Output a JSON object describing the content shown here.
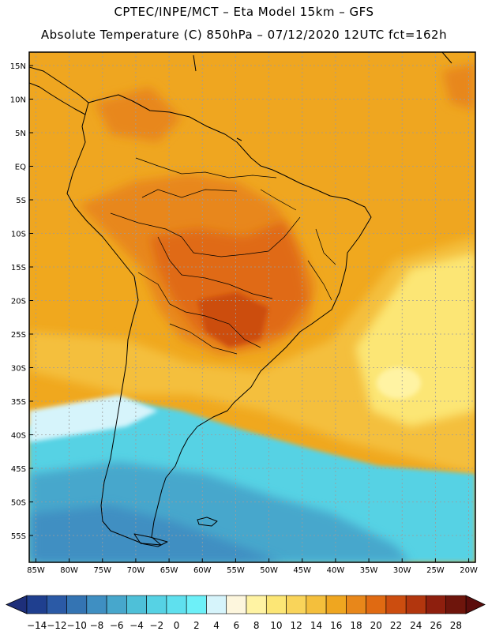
{
  "header": {
    "line1": "CPTEC/INPE/MCT –  Eta Model 15km – GFS",
    "line2": "Absolute Temperature (C) 850hPa – 07/12/2020 12UTC fct=162h"
  },
  "map": {
    "lat_labels": [
      "15N",
      "10N",
      "5N",
      "EQ",
      "5S",
      "10S",
      "15S",
      "20S",
      "25S",
      "30S",
      "35S",
      "40S",
      "45S",
      "50S",
      "55S"
    ],
    "lon_labels": [
      "85W",
      "80W",
      "75W",
      "70W",
      "65W",
      "60W",
      "55W",
      "50W",
      "45W",
      "40W",
      "35W",
      "30W",
      "25W",
      "20W"
    ]
  },
  "colorbar": {
    "labels": [
      "-14",
      "-12",
      "-10",
      "-8",
      "-6",
      "-4",
      "-2",
      "0",
      "2",
      "4",
      "6",
      "8",
      "10",
      "12",
      "14",
      "16",
      "18",
      "20",
      "22",
      "24",
      "26",
      "28"
    ],
    "colors": [
      "#1f3f8f",
      "#2b5aa6",
      "#3474b3",
      "#3f8fc2",
      "#47a7cc",
      "#4ec0d8",
      "#56d2e4",
      "#5fe0ee",
      "#6df0f8",
      "#d6f4fb",
      "#fdf6dd",
      "#fff3a3",
      "#fce675",
      "#f9d45a",
      "#f4bf3c",
      "#efa620",
      "#e8871a",
      "#e06a12",
      "#cc4d0f",
      "#b2360e",
      "#8e1f0e",
      "#6e150c"
    ],
    "min_color": "#1e2f7a",
    "max_color": "#5b0d0c"
  }
}
